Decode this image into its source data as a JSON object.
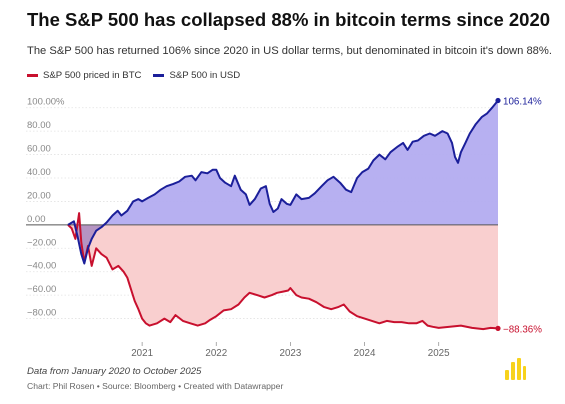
{
  "header": {
    "title": "The S&P 500 has collapsed 88% in bitcoin terms since 2020",
    "subtitle": "The S&P 500 has returned 106% since 2020 in US dollar terms, but denominated in bitcoin it's down 88%."
  },
  "footer": {
    "note": "Data from January 2020 to October 2025",
    "credit": "Chart: Phil Rosen • Source: Bloomberg • Created with Datawrapper"
  },
  "colors": {
    "btc_line": "#c8102e",
    "btc_fill": "#f9cfcf",
    "usd_line": "#1b1f9a",
    "usd_fill": "#b3acf0",
    "overlap_fill": "#a989bf",
    "logo": "#f7d21c"
  },
  "chart_data": {
    "type": "area",
    "title": "The S&P 500 has collapsed 88% in bitcoin terms since 2020",
    "xlabel": "",
    "ylabel": "",
    "x_range": [
      2020.0,
      2025.8
    ],
    "ylim": [
      -100,
      110
    ],
    "y_ticks": [
      {
        "value": 100,
        "label": "100.00%"
      },
      {
        "value": 80,
        "label": "80.00"
      },
      {
        "value": 60,
        "label": "60.00"
      },
      {
        "value": 40,
        "label": "40.00"
      },
      {
        "value": 20,
        "label": "20.00"
      },
      {
        "value": 0,
        "label": "0.00"
      },
      {
        "value": -20,
        "label": "−20.00"
      },
      {
        "value": -40,
        "label": "−40.00"
      },
      {
        "value": -60,
        "label": "−60.00"
      },
      {
        "value": -80,
        "label": "−80.00"
      }
    ],
    "x_ticks": [
      {
        "value": 2021.0,
        "label": "2021"
      },
      {
        "value": 2022.0,
        "label": "2022"
      },
      {
        "value": 2023.0,
        "label": "2023"
      },
      {
        "value": 2024.0,
        "label": "2024"
      },
      {
        "value": 2025.0,
        "label": "2025"
      }
    ],
    "grid": true,
    "legend_position": "top-left",
    "series": [
      {
        "name": "S&P 500 priced in BTC",
        "color": "#c8102e",
        "end_label": "−88.36%",
        "points": [
          [
            2020.0,
            0
          ],
          [
            2020.05,
            -3
          ],
          [
            2020.1,
            -12
          ],
          [
            2020.15,
            10
          ],
          [
            2020.18,
            -15
          ],
          [
            2020.22,
            -32
          ],
          [
            2020.27,
            -18
          ],
          [
            2020.32,
            -35
          ],
          [
            2020.38,
            -20
          ],
          [
            2020.45,
            -25
          ],
          [
            2020.52,
            -28
          ],
          [
            2020.6,
            -38
          ],
          [
            2020.68,
            -35
          ],
          [
            2020.75,
            -40
          ],
          [
            2020.8,
            -45
          ],
          [
            2020.85,
            -55
          ],
          [
            2020.9,
            -65
          ],
          [
            2020.95,
            -72
          ],
          [
            2021.0,
            -80
          ],
          [
            2021.05,
            -84
          ],
          [
            2021.1,
            -86
          ],
          [
            2021.2,
            -84
          ],
          [
            2021.3,
            -80
          ],
          [
            2021.38,
            -83
          ],
          [
            2021.45,
            -77
          ],
          [
            2021.55,
            -82
          ],
          [
            2021.65,
            -84
          ],
          [
            2021.75,
            -86
          ],
          [
            2021.85,
            -84
          ],
          [
            2021.92,
            -81
          ],
          [
            2022.0,
            -78
          ],
          [
            2022.1,
            -73
          ],
          [
            2022.2,
            -72
          ],
          [
            2022.3,
            -68
          ],
          [
            2022.38,
            -62
          ],
          [
            2022.45,
            -58
          ],
          [
            2022.55,
            -60
          ],
          [
            2022.65,
            -62
          ],
          [
            2022.75,
            -60
          ],
          [
            2022.82,
            -58
          ],
          [
            2022.9,
            -57
          ],
          [
            2022.97,
            -56
          ],
          [
            2023.0,
            -54
          ],
          [
            2023.08,
            -60
          ],
          [
            2023.15,
            -62
          ],
          [
            2023.25,
            -63
          ],
          [
            2023.35,
            -66
          ],
          [
            2023.45,
            -70
          ],
          [
            2023.55,
            -72
          ],
          [
            2023.65,
            -70
          ],
          [
            2023.72,
            -68
          ],
          [
            2023.8,
            -74
          ],
          [
            2023.9,
            -78
          ],
          [
            2024.0,
            -80
          ],
          [
            2024.1,
            -82
          ],
          [
            2024.2,
            -84
          ],
          [
            2024.3,
            -82
          ],
          [
            2024.4,
            -83
          ],
          [
            2024.5,
            -83
          ],
          [
            2024.6,
            -84
          ],
          [
            2024.7,
            -84
          ],
          [
            2024.78,
            -82
          ],
          [
            2024.85,
            -86
          ],
          [
            2024.92,
            -87
          ],
          [
            2025.0,
            -88
          ],
          [
            2025.15,
            -87
          ],
          [
            2025.3,
            -86
          ],
          [
            2025.45,
            -88
          ],
          [
            2025.6,
            -89
          ],
          [
            2025.7,
            -88
          ],
          [
            2025.8,
            -88.36
          ]
        ]
      },
      {
        "name": "S&P 500 in USD",
        "color": "#1b1f9a",
        "end_label": "106.14%",
        "points": [
          [
            2020.0,
            0
          ],
          [
            2020.08,
            3
          ],
          [
            2020.13,
            -10
          ],
          [
            2020.18,
            -25
          ],
          [
            2020.22,
            -33
          ],
          [
            2020.27,
            -20
          ],
          [
            2020.32,
            -12
          ],
          [
            2020.38,
            -5
          ],
          [
            2020.45,
            -2
          ],
          [
            2020.52,
            2
          ],
          [
            2020.6,
            8
          ],
          [
            2020.67,
            12
          ],
          [
            2020.72,
            8
          ],
          [
            2020.8,
            12
          ],
          [
            2020.88,
            20
          ],
          [
            2020.95,
            22
          ],
          [
            2021.0,
            20
          ],
          [
            2021.08,
            23
          ],
          [
            2021.17,
            26
          ],
          [
            2021.25,
            30
          ],
          [
            2021.33,
            33
          ],
          [
            2021.42,
            35
          ],
          [
            2021.5,
            37
          ],
          [
            2021.58,
            41
          ],
          [
            2021.67,
            42
          ],
          [
            2021.72,
            38
          ],
          [
            2021.8,
            45
          ],
          [
            2021.88,
            44
          ],
          [
            2021.95,
            47
          ],
          [
            2022.0,
            47
          ],
          [
            2022.05,
            40
          ],
          [
            2022.12,
            36
          ],
          [
            2022.2,
            33
          ],
          [
            2022.25,
            42
          ],
          [
            2022.33,
            30
          ],
          [
            2022.4,
            26
          ],
          [
            2022.45,
            17
          ],
          [
            2022.52,
            22
          ],
          [
            2022.6,
            31
          ],
          [
            2022.67,
            33
          ],
          [
            2022.72,
            18
          ],
          [
            2022.77,
            11
          ],
          [
            2022.83,
            14
          ],
          [
            2022.88,
            22
          ],
          [
            2022.95,
            18
          ],
          [
            2023.0,
            17
          ],
          [
            2023.08,
            26
          ],
          [
            2023.15,
            22
          ],
          [
            2023.25,
            23
          ],
          [
            2023.33,
            27
          ],
          [
            2023.42,
            33
          ],
          [
            2023.5,
            38
          ],
          [
            2023.58,
            41
          ],
          [
            2023.67,
            36
          ],
          [
            2023.75,
            30
          ],
          [
            2023.82,
            28
          ],
          [
            2023.9,
            40
          ],
          [
            2023.97,
            45
          ],
          [
            2024.05,
            48
          ],
          [
            2024.12,
            55
          ],
          [
            2024.2,
            60
          ],
          [
            2024.28,
            56
          ],
          [
            2024.35,
            62
          ],
          [
            2024.45,
            67
          ],
          [
            2024.52,
            70
          ],
          [
            2024.58,
            64
          ],
          [
            2024.65,
            71
          ],
          [
            2024.72,
            72
          ],
          [
            2024.8,
            76
          ],
          [
            2024.88,
            78
          ],
          [
            2024.95,
            76
          ],
          [
            2025.05,
            80
          ],
          [
            2025.12,
            78
          ],
          [
            2025.18,
            70
          ],
          [
            2025.22,
            58
          ],
          [
            2025.26,
            53
          ],
          [
            2025.3,
            62
          ],
          [
            2025.36,
            70
          ],
          [
            2025.42,
            78
          ],
          [
            2025.5,
            86
          ],
          [
            2025.58,
            92
          ],
          [
            2025.65,
            95
          ],
          [
            2025.72,
            100
          ],
          [
            2025.8,
            106.14
          ]
        ]
      }
    ]
  }
}
